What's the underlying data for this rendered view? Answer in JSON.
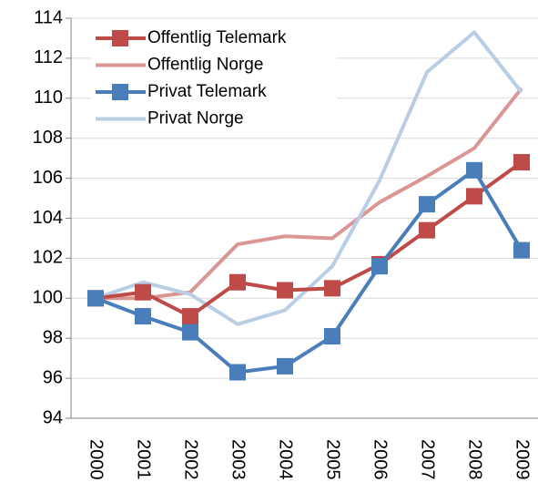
{
  "chart_data": {
    "type": "line",
    "categories": [
      "2000",
      "2001",
      "2002",
      "2003",
      "2004",
      "2005",
      "2006",
      "2007",
      "2008",
      "2009"
    ],
    "series": [
      {
        "name": "Offentlig Telemark",
        "color": "#be4b48",
        "marker": "square",
        "values": [
          100,
          100.3,
          99.1,
          100.8,
          100.4,
          100.5,
          101.7,
          103.4,
          105.1,
          106.8
        ]
      },
      {
        "name": "Offentlig Norge",
        "color": "#d99694",
        "values": [
          100,
          100.0,
          100.3,
          102.7,
          103.1,
          103.0,
          104.8,
          106.1,
          107.5,
          110.5
        ]
      },
      {
        "name": "Privat Telemark",
        "color": "#4a7ebb",
        "marker": "square",
        "values": [
          100,
          99.1,
          98.3,
          96.3,
          96.6,
          98.1,
          101.6,
          104.7,
          106.4,
          102.4
        ]
      },
      {
        "name": "Privat Norge",
        "color": "#b9cde5",
        "values": [
          100,
          100.8,
          100.2,
          98.7,
          99.4,
          101.6,
          105.9,
          111.3,
          113.3,
          110.3
        ]
      }
    ],
    "ylim": [
      94,
      114
    ],
    "yticks": [
      94,
      96,
      98,
      100,
      102,
      104,
      106,
      108,
      110,
      112,
      114
    ],
    "grid": true,
    "legend": "upper left"
  }
}
